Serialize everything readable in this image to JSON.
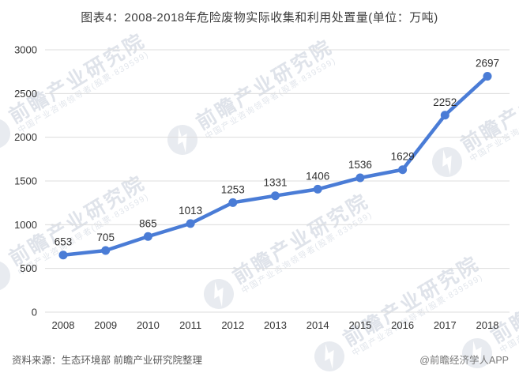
{
  "header": {
    "title": "图表4：2008-2018年危险废物实际收集和利用处置量(单位：万吨)"
  },
  "chart_data": {
    "type": "line",
    "title": "图表4：2008-2018年危险废物实际收集和利用处置量(单位：万吨)",
    "unit": "万吨",
    "categories": [
      "2008",
      "2009",
      "2010",
      "2011",
      "2012",
      "2013",
      "2014",
      "2015",
      "2016",
      "2017",
      "2018"
    ],
    "values": [
      653,
      705,
      865,
      1013,
      1253,
      1331,
      1406,
      1536,
      1629,
      2252,
      2697
    ],
    "data_labels": [
      653,
      705,
      865,
      1013,
      1253,
      1331,
      1406,
      1536,
      1629,
      2252,
      2697
    ],
    "ylim": [
      0,
      3000
    ],
    "ytick_step": 500,
    "ytick_labels": [
      "0",
      "500",
      "1000",
      "1500",
      "2000",
      "2500",
      "3000"
    ],
    "grid": "horizontal",
    "legend_position": "none",
    "xlabel": "",
    "ylabel": ""
  },
  "colors": {
    "line": "#4a7cd6",
    "marker": "#4a7cd6",
    "grid": "#dcdcdc",
    "axis_text": "#333333",
    "data_label_text": "#2f2f2f",
    "title_text": "#3d3d3d",
    "footer_text": "#595959",
    "watermark_text": "#dfe3ea",
    "watermark_circle": "#e8ebf0"
  },
  "footer": {
    "source": "资料来源：生态环境部 前瞻产业研究院整理",
    "credit": "@前瞻经济学人APP"
  },
  "watermark": {
    "brand": "前瞻产业研究院",
    "tagline": "中国产业咨询领导者(股票·839599)"
  }
}
